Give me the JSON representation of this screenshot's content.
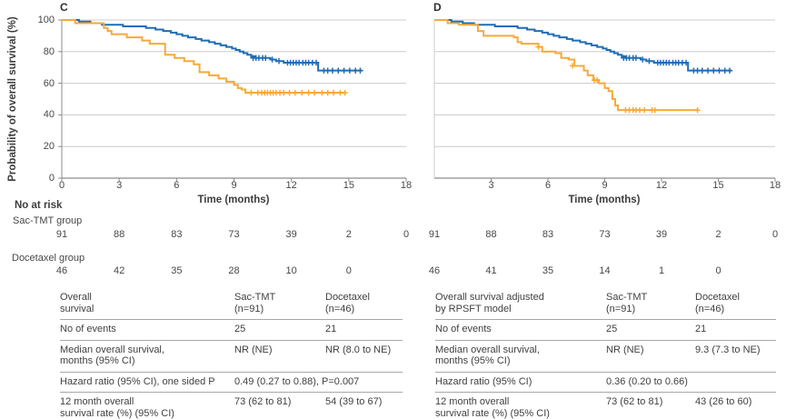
{
  "figure": {
    "y_axis_title": "Probability of overall survival (%)",
    "x_axis_title": "Time (months)",
    "colors": {
      "sac_tmt": "#1f6db4",
      "docetaxel": "#f6a93b",
      "grid": "#cccccc",
      "axis": "#8c8c8c",
      "text": "#404040"
    }
  },
  "chart_data": [
    {
      "type": "line",
      "panel": "C",
      "subtype": "kaplan-meier",
      "xlabel": "Time (months)",
      "ylabel": "Probability of overall survival (%)",
      "xlim": [
        0,
        18
      ],
      "ylim": [
        0,
        100
      ],
      "x_ticks": [
        0,
        3,
        6,
        9,
        12,
        15,
        18
      ],
      "x_tick_labels": [
        "0",
        "3",
        "6",
        "9",
        "12",
        "15",
        "18"
      ],
      "y_ticks": [
        0,
        20,
        40,
        60,
        80,
        100
      ],
      "grid": "horizontal",
      "legend": "none",
      "series": [
        {
          "name": "Sac-TMT",
          "color_key": "sac_tmt",
          "step": [
            [
              0,
              100
            ],
            [
              0.9,
              99
            ],
            [
              1.5,
              98
            ],
            [
              2.1,
              97
            ],
            [
              3.2,
              96
            ],
            [
              4.4,
              95
            ],
            [
              4.9,
              94
            ],
            [
              5.3,
              93
            ],
            [
              5.7,
              92
            ],
            [
              6.0,
              91
            ],
            [
              6.3,
              90
            ],
            [
              6.6,
              89
            ],
            [
              7.0,
              88
            ],
            [
              7.3,
              87
            ],
            [
              7.7,
              86
            ],
            [
              8.0,
              85
            ],
            [
              8.3,
              84
            ],
            [
              8.6,
              83
            ],
            [
              8.9,
              82
            ],
            [
              9.1,
              81
            ],
            [
              9.3,
              80
            ],
            [
              9.5,
              79
            ],
            [
              9.7,
              78
            ],
            [
              9.9,
              77
            ],
            [
              10.1,
              76
            ],
            [
              10.9,
              75
            ],
            [
              11.2,
              74
            ],
            [
              11.6,
              73
            ],
            [
              13.4,
              68
            ],
            [
              15.7,
              68
            ]
          ],
          "censors": [
            [
              10.0,
              76
            ],
            [
              10.15,
              76
            ],
            [
              10.3,
              76
            ],
            [
              10.5,
              76
            ],
            [
              10.65,
              76
            ],
            [
              11.0,
              75
            ],
            [
              11.35,
              74
            ],
            [
              11.8,
              73
            ],
            [
              11.95,
              73
            ],
            [
              12.1,
              73
            ],
            [
              12.25,
              73
            ],
            [
              12.4,
              73
            ],
            [
              12.6,
              73
            ],
            [
              12.75,
              73
            ],
            [
              12.9,
              73
            ],
            [
              13.1,
              73
            ],
            [
              13.3,
              73
            ],
            [
              13.7,
              68
            ],
            [
              13.9,
              68
            ],
            [
              14.15,
              68
            ],
            [
              14.45,
              68
            ],
            [
              14.75,
              68
            ],
            [
              15.05,
              68
            ],
            [
              15.35,
              68
            ],
            [
              15.6,
              68
            ]
          ]
        },
        {
          "name": "Docetaxel",
          "color_key": "docetaxel",
          "step": [
            [
              0,
              100
            ],
            [
              0.7,
              98
            ],
            [
              2.2,
              95
            ],
            [
              2.4,
              93
            ],
            [
              2.6,
              91
            ],
            [
              3.4,
              89
            ],
            [
              4.2,
              87
            ],
            [
              4.6,
              85
            ],
            [
              5.4,
              78
            ],
            [
              5.9,
              76
            ],
            [
              6.4,
              74
            ],
            [
              6.9,
              72
            ],
            [
              7.2,
              67
            ],
            [
              7.7,
              65
            ],
            [
              8.2,
              63
            ],
            [
              8.6,
              61
            ],
            [
              9.0,
              59
            ],
            [
              9.2,
              57
            ],
            [
              9.4,
              56
            ],
            [
              9.6,
              54
            ],
            [
              14.8,
              54
            ]
          ],
          "censors": [
            [
              9.9,
              54
            ],
            [
              10.25,
              54
            ],
            [
              10.45,
              54
            ],
            [
              10.6,
              54
            ],
            [
              10.75,
              54
            ],
            [
              10.9,
              54
            ],
            [
              11.05,
              54
            ],
            [
              11.2,
              54
            ],
            [
              11.4,
              54
            ],
            [
              11.6,
              54
            ],
            [
              11.9,
              54
            ],
            [
              12.2,
              54
            ],
            [
              12.55,
              54
            ],
            [
              12.9,
              54
            ],
            [
              13.2,
              54
            ],
            [
              13.6,
              54
            ],
            [
              13.9,
              54
            ],
            [
              14.2,
              54
            ],
            [
              14.55,
              54
            ],
            [
              14.8,
              54
            ]
          ]
        }
      ]
    },
    {
      "type": "line",
      "panel": "D",
      "subtype": "kaplan-meier",
      "xlabel": "Time (months)",
      "ylabel": "",
      "xlim": [
        0,
        18
      ],
      "ylim": [
        0,
        100
      ],
      "x_ticks": [
        0,
        3,
        6,
        9,
        12,
        15,
        18
      ],
      "x_tick_labels": [
        "",
        "3",
        "6",
        "9",
        "12",
        "15",
        "18"
      ],
      "y_ticks": [
        0,
        20,
        40,
        60,
        80,
        100
      ],
      "grid": "horizontal",
      "legend": "none",
      "series": [
        {
          "name": "Sac-TMT",
          "color_key": "sac_tmt",
          "step": [
            [
              0,
              100
            ],
            [
              0.9,
              99
            ],
            [
              1.5,
              98
            ],
            [
              2.1,
              97
            ],
            [
              3.2,
              96
            ],
            [
              4.4,
              95
            ],
            [
              4.9,
              94
            ],
            [
              5.3,
              93
            ],
            [
              5.7,
              92
            ],
            [
              6.0,
              91
            ],
            [
              6.3,
              90
            ],
            [
              6.6,
              89
            ],
            [
              7.0,
              88
            ],
            [
              7.3,
              87
            ],
            [
              7.7,
              86
            ],
            [
              8.0,
              85
            ],
            [
              8.3,
              84
            ],
            [
              8.6,
              83
            ],
            [
              8.9,
              82
            ],
            [
              9.1,
              81
            ],
            [
              9.3,
              80
            ],
            [
              9.5,
              79
            ],
            [
              9.7,
              78
            ],
            [
              9.9,
              77
            ],
            [
              10.1,
              76
            ],
            [
              10.9,
              75
            ],
            [
              11.2,
              74
            ],
            [
              11.6,
              73
            ],
            [
              13.4,
              68
            ],
            [
              15.7,
              68
            ]
          ],
          "censors": [
            [
              10.0,
              76
            ],
            [
              10.15,
              76
            ],
            [
              10.3,
              76
            ],
            [
              10.5,
              76
            ],
            [
              10.65,
              76
            ],
            [
              11.0,
              75
            ],
            [
              11.35,
              74
            ],
            [
              11.8,
              73
            ],
            [
              11.95,
              73
            ],
            [
              12.1,
              73
            ],
            [
              12.25,
              73
            ],
            [
              12.4,
              73
            ],
            [
              12.6,
              73
            ],
            [
              12.75,
              73
            ],
            [
              12.9,
              73
            ],
            [
              13.1,
              73
            ],
            [
              13.3,
              73
            ],
            [
              13.7,
              68
            ],
            [
              13.9,
              68
            ],
            [
              14.15,
              68
            ],
            [
              14.45,
              68
            ],
            [
              14.75,
              68
            ],
            [
              15.05,
              68
            ],
            [
              15.35,
              68
            ],
            [
              15.6,
              68
            ]
          ]
        },
        {
          "name": "Docetaxel",
          "color_key": "docetaxel",
          "step": [
            [
              0,
              100
            ],
            [
              0.7,
              98
            ],
            [
              1.3,
              97
            ],
            [
              2.3,
              93
            ],
            [
              2.6,
              90
            ],
            [
              4.2,
              89
            ],
            [
              4.4,
              86
            ],
            [
              4.6,
              85
            ],
            [
              5.5,
              83
            ],
            [
              5.7,
              80
            ],
            [
              6.4,
              79
            ],
            [
              6.7,
              76
            ],
            [
              7.1,
              75
            ],
            [
              7.4,
              71
            ],
            [
              7.9,
              68
            ],
            [
              8.1,
              65
            ],
            [
              8.4,
              62
            ],
            [
              8.7,
              60
            ],
            [
              9.0,
              57
            ],
            [
              9.2,
              55
            ],
            [
              9.4,
              50
            ],
            [
              9.55,
              46
            ],
            [
              9.7,
              43
            ],
            [
              13.9,
              43
            ]
          ],
          "censors": [
            [
              5.5,
              83
            ],
            [
              7.3,
              71
            ],
            [
              8.45,
              62
            ],
            [
              8.6,
              62
            ],
            [
              10.1,
              43
            ],
            [
              10.3,
              43
            ],
            [
              10.5,
              43
            ],
            [
              10.65,
              43
            ],
            [
              10.85,
              43
            ],
            [
              11.1,
              43
            ],
            [
              11.5,
              43
            ],
            [
              11.65,
              43
            ],
            [
              13.9,
              43
            ]
          ]
        }
      ]
    }
  ],
  "at_risk": {
    "heading": "No at risk",
    "groups": [
      {
        "label": "Sac-TMT group",
        "c": [
          "91",
          "88",
          "83",
          "73",
          "39",
          "2",
          "0"
        ],
        "d": [
          "91",
          "88",
          "83",
          "73",
          "39",
          "2",
          "0"
        ]
      },
      {
        "label": "Docetaxel group",
        "c": [
          "46",
          "42",
          "35",
          "28",
          "10",
          "0"
        ],
        "d": [
          "46",
          "41",
          "35",
          "14",
          "1",
          "0"
        ]
      }
    ]
  },
  "tables": {
    "left": {
      "header": {
        "label": "Overall\nsurvival",
        "col1": "Sac-TMT\n(n=91)",
        "col2": "Docetaxel\n(n=46)"
      },
      "rows": [
        {
          "label": "No of events",
          "v1": "25",
          "v2": "21"
        },
        {
          "label": "Median overall survival,\nmonths (95% CI)",
          "v1": "NR (NE)",
          "v2": "NR (8.0 to NE)"
        },
        {
          "label": "Hazard ratio (95% CI), one sided P",
          "span": "0.49 (0.27 to 0.88), P=0.007"
        },
        {
          "label": "12 month overall\nsurvival rate (%) (95% CI)",
          "v1": "73 (62 to 81)",
          "v2": "54 (39 to 67)"
        }
      ]
    },
    "right": {
      "header": {
        "label": "Overall survival adjusted\nby RPSFT model",
        "col1": "Sac-TMT\n(n=91)",
        "col2": "Docetaxel\n(n=46)"
      },
      "rows": [
        {
          "label": "No of events",
          "v1": "25",
          "v2": "21"
        },
        {
          "label": "Median overall survival,\nmonths (95% CI)",
          "v1": "NR (NE)",
          "v2": "9.3 (7.3 to NE)"
        },
        {
          "label": "Hazard ratio (95% CI)",
          "span": "0.36 (0.20 to 0.66)"
        },
        {
          "label": "12 month overall\nsurvival rate (%) (95% CI)",
          "v1": "73 (62 to 81)",
          "v2": "43 (26 to 60)"
        }
      ]
    }
  }
}
